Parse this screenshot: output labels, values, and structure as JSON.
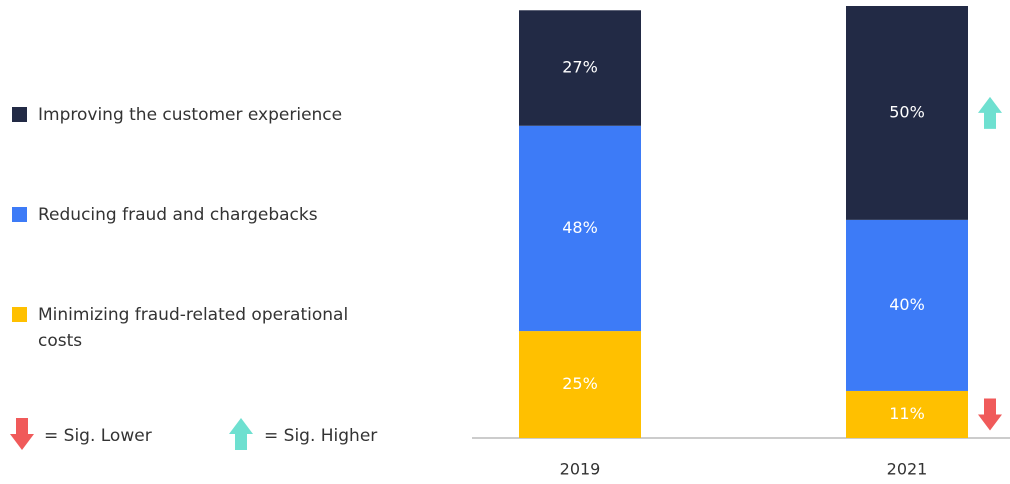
{
  "chart_data": {
    "type": "stacked_bar",
    "categories": [
      "2019",
      "2021"
    ],
    "series": [
      {
        "name": "Improving the customer experience",
        "color": "#222a45",
        "values": [
          27,
          50
        ],
        "value_labels": [
          "27%",
          "50%"
        ],
        "sig": [
          null,
          "higher"
        ]
      },
      {
        "name": "Reducing fraud and chargebacks",
        "color": "#3d7bf7",
        "values": [
          48,
          40
        ],
        "value_labels": [
          "48%",
          "40%"
        ],
        "sig": [
          null,
          null
        ]
      },
      {
        "name": "Minimizing fraud-related operational costs",
        "color": "#ffc000",
        "values": [
          25,
          11
        ],
        "value_labels": [
          "25%",
          "11%"
        ],
        "sig": [
          null,
          "lower"
        ]
      }
    ],
    "ylim": [
      0,
      101
    ],
    "sig_legend": {
      "lower": "= Sig. Lower",
      "higher": "= Sig. Higher",
      "lower_color": "#f05a5a",
      "higher_color": "#6ee0d0"
    }
  }
}
